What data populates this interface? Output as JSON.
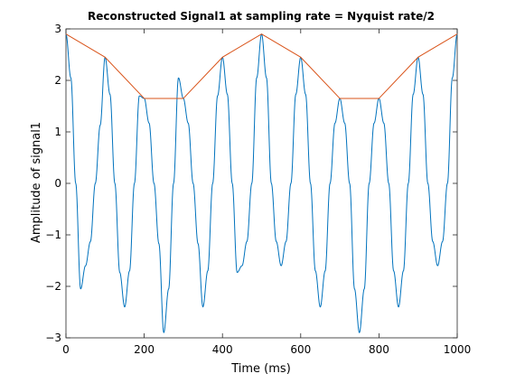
{
  "chart_data": {
    "type": "line",
    "title": "Reconstructed Signal1 at sampling rate = Nyquist rate/2",
    "xlabel": "Time (ms)",
    "ylabel": "Amplitude of signal1",
    "xlim": [
      0,
      1000
    ],
    "ylim": [
      -3,
      3
    ],
    "xticks": [
      "0",
      "200",
      "400",
      "600",
      "800",
      "1000"
    ],
    "yticks": [
      "-3",
      "-2",
      "-1",
      "0",
      "1",
      "2",
      "3"
    ],
    "grid": false,
    "series": [
      {
        "color": "#0072BD",
        "style": "continuous",
        "samples": 1001,
        "x": [
          0,
          12.5,
          25,
          37.5,
          50,
          62.5,
          75,
          87.5,
          100,
          112.5,
          125,
          137.5,
          150,
          162.5,
          175,
          187.5,
          200,
          212.5,
          225,
          237.5,
          250,
          262.5,
          275,
          287.5,
          300,
          312.5,
          325,
          337.5,
          350,
          362.5,
          375,
          387.5,
          400,
          412.5,
          425,
          437.5,
          450,
          462.5,
          475,
          487.5,
          500,
          512.5,
          525,
          537.5,
          550,
          562.5,
          575,
          587.5,
          600,
          612.5,
          625,
          637.5,
          650,
          662.5,
          675,
          687.5,
          700,
          712.5,
          725,
          737.5,
          750,
          762.5,
          775,
          787.5,
          800,
          812.5,
          825,
          837.5,
          850,
          862.5,
          875,
          887.5,
          900,
          912.5,
          925,
          937.5,
          950,
          962.5,
          975,
          987.5,
          1000
        ],
        "y": [
          2.9,
          2.05,
          0.0,
          -2.05,
          -1.6,
          -1.13,
          0.0,
          1.13,
          2.45,
          1.73,
          0.0,
          -1.73,
          -2.4,
          -1.7,
          0.0,
          1.7,
          1.65,
          1.17,
          0.0,
          -1.17,
          -2.9,
          -2.05,
          0.0,
          2.05,
          1.65,
          1.17,
          0.0,
          -1.17,
          -2.4,
          -1.7,
          0.0,
          1.7,
          2.45,
          1.73,
          0.0,
          -1.73,
          -1.6,
          -1.13,
          0.0,
          2.05,
          2.9,
          2.05,
          0.0,
          -1.13,
          -1.6,
          -1.13,
          0.0,
          1.73,
          2.45,
          1.73,
          0.0,
          -1.7,
          -2.4,
          -1.7,
          0.0,
          1.17,
          1.65,
          1.17,
          0.0,
          -2.05,
          -2.9,
          -2.05,
          0.0,
          1.17,
          1.65,
          1.17,
          0.0,
          -1.7,
          -2.4,
          -1.7,
          0.0,
          1.73,
          2.45,
          1.73,
          0.0,
          -1.13,
          -1.6,
          -1.13,
          0.0,
          2.05,
          2.9
        ]
      },
      {
        "color": "#D95319",
        "style": "sampled",
        "x": [
          0,
          100,
          200,
          300,
          400,
          500,
          600,
          700,
          800,
          900,
          1000
        ],
        "y": [
          2.9,
          2.45,
          1.65,
          1.65,
          2.45,
          2.9,
          2.45,
          1.65,
          1.65,
          2.45,
          2.9
        ]
      }
    ]
  }
}
